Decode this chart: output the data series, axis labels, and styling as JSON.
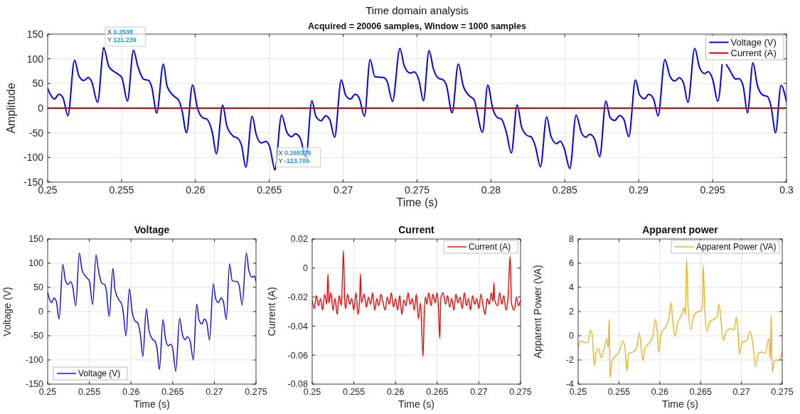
{
  "chart_data": [
    {
      "type": "line",
      "title": "Time domain analysis",
      "subtitle": "Acquired = 20006 samples, Window = 1000 samples",
      "xlabel": "Time (s)",
      "ylabel": "Amplitude",
      "xlim": [
        0.25,
        0.3
      ],
      "xticks": [
        0.25,
        0.255,
        0.26,
        0.265,
        0.27,
        0.275,
        0.28,
        0.285,
        0.29,
        0.295,
        0.3
      ],
      "ylim": [
        -150,
        150
      ],
      "yticks": [
        -150,
        -100,
        -50,
        0,
        50,
        100,
        150
      ],
      "grid": true,
      "legend": "top right",
      "marker": "none",
      "line_style": "solid",
      "series": [
        {
          "name": "Voltage (V)",
          "color": "#0000ff",
          "x": [
            0.25,
            0.25022,
            0.25046,
            0.25076,
            0.25104,
            0.25137,
            0.25182,
            0.25212,
            0.25245,
            0.25275,
            0.25298,
            0.25338,
            0.2538,
            0.25414,
            0.2546,
            0.25502,
            0.2554,
            0.25581,
            0.25609,
            0.25651,
            0.25684,
            0.25705,
            0.25738,
            0.25783,
            0.25808,
            0.25858,
            0.25887,
            0.25907,
            0.2594,
            0.2598,
            0.26015,
            0.26056,
            0.26073,
            0.26114,
            0.26142,
            0.26184,
            0.26213,
            0.26255,
            0.26288,
            0.26313,
            0.26341,
            0.26384,
            0.26412,
            0.26445,
            0.26478,
            0.26503,
            0.265375,
            0.26583,
            0.26619,
            0.26652,
            0.26677,
            0.2671,
            0.26748,
            0.26788,
            0.26815,
            0.26851,
            0.26881,
            0.26909,
            0.26942,
            0.26987,
            0.27017,
            0.2705,
            0.2708,
            0.27108,
            0.27144,
            0.27182,
            0.27215,
            0.27273,
            0.27298,
            0.27334,
            0.27384,
            0.27414,
            0.27455,
            0.2748,
            0.27513,
            0.27543,
            0.27581,
            0.27611,
            0.27648,
            0.27673,
            0.27699,
            0.27737,
            0.27779,
            0.27813,
            0.27859,
            0.27884,
            0.27943,
            0.27978,
            0.28012,
            0.28049,
            0.28069,
            0.28103,
            0.28138,
            0.28177,
            0.28209,
            0.28251,
            0.28271,
            0.28301,
            0.28335,
            0.28377,
            0.28406,
            0.28444,
            0.28469,
            0.28495,
            0.28534,
            0.28576,
            0.28613,
            0.28641,
            0.28668,
            0.28702,
            0.28736,
            0.28778,
            0.28806,
            0.28837,
            0.28871,
            0.28899,
            0.28933,
            0.28978,
            0.29005,
            0.29039,
            0.29068,
            0.29101,
            0.29131,
            0.29177,
            0.29211,
            0.29244,
            0.29274,
            0.29303,
            0.29333,
            0.29379,
            0.29412,
            0.29446,
            0.29471,
            0.295,
            0.29535,
            0.29564,
            0.2958,
            0.29594,
            0.29622,
            0.29655,
            0.29677,
            0.29706,
            0.29736,
            0.29773,
            0.29803,
            0.29842,
            0.29871,
            0.29896,
            0.29926,
            0.29963,
            0.3
          ],
          "values": [
            40,
            26,
            18.5,
            28,
            21,
            -15.5,
            97.5,
            65,
            56,
            62,
            53.5,
            12,
            121.2,
            84.5,
            72,
            62,
            14.5,
            117.5,
            86,
            58.5,
            56,
            42,
            -10,
            89.5,
            45,
            23.5,
            16,
            -1.5,
            -50,
            47,
            -1.5,
            -20.5,
            -21.5,
            -49,
            -92.5,
            6,
            -36.5,
            -56.5,
            -61.5,
            -76.5,
            -120,
            -16.5,
            -54,
            -70.5,
            -67.5,
            -79,
            -123.7,
            -14,
            -49,
            -58,
            -52,
            -61.5,
            -100,
            15,
            -16.5,
            -25.5,
            -15.5,
            -23,
            -59,
            57.5,
            26,
            18.5,
            28,
            21,
            -16.5,
            98.5,
            63.5,
            62,
            53.5,
            13.5,
            121,
            85,
            71,
            73.5,
            56,
            15,
            117,
            79,
            60,
            58,
            46,
            -9.5,
            89.5,
            44.5,
            23.5,
            18,
            -49,
            47,
            -1,
            -20,
            -21.5,
            -47.5,
            -91,
            6.5,
            -40,
            -56.5,
            -58,
            -78,
            -119,
            -17.5,
            -57,
            -72,
            -67,
            -81,
            -122.5,
            -14,
            -50,
            -59,
            -53,
            -63,
            -98.5,
            14.5,
            -19,
            -25,
            -15,
            -22.5,
            -58,
            57.5,
            27.5,
            19,
            28,
            18,
            -16,
            98.5,
            65,
            55,
            61.5,
            51,
            11.5,
            121,
            82,
            70,
            74,
            59,
            14,
            88,
            null,
            88,
            74,
            59,
            60,
            46,
            -9.5,
            92,
            46,
            26,
            23.5,
            3,
            -50,
            46,
            13
          ]
        },
        {
          "name": "Current (A)",
          "color": "#d40000",
          "x": [
            0.25,
            0.3
          ],
          "values": [
            0,
            0
          ]
        }
      ],
      "annotations": [
        {
          "text": "X 0.2538\nY 121.239",
          "x": 0.2538,
          "y": 121.239
        },
        {
          "text": "X 0.265375\nY -123.705",
          "x": 0.265375,
          "y": -123.705
        }
      ]
    },
    {
      "type": "line",
      "title": "Voltage",
      "xlabel": "Time (s)",
      "ylabel": "Voltage (V)",
      "xlim": [
        0.25,
        0.275
      ],
      "xticks": [
        0.25,
        0.255,
        0.26,
        0.265,
        0.27,
        0.275
      ],
      "ylim": [
        -150,
        150
      ],
      "yticks": [
        -150,
        -100,
        -50,
        0,
        50,
        100,
        150
      ],
      "grid": true,
      "legend": "bottom left",
      "marker": "none",
      "line_style": "solid",
      "series": [
        {
          "name": "Voltage (V)",
          "color": "#0000ff",
          "x": [
            0.25,
            0.25022,
            0.25046,
            0.25076,
            0.25104,
            0.25137,
            0.25182,
            0.25212,
            0.25245,
            0.25275,
            0.25298,
            0.25338,
            0.2538,
            0.25414,
            0.2546,
            0.25502,
            0.2554,
            0.25581,
            0.25609,
            0.25651,
            0.25684,
            0.25705,
            0.25738,
            0.25783,
            0.25808,
            0.25858,
            0.25887,
            0.25907,
            0.2594,
            0.2598,
            0.26015,
            0.26056,
            0.26073,
            0.26114,
            0.26142,
            0.26184,
            0.26213,
            0.26255,
            0.26288,
            0.26313,
            0.26341,
            0.26384,
            0.26412,
            0.26445,
            0.26478,
            0.26503,
            0.265375,
            0.26583,
            0.26619,
            0.26652,
            0.26677,
            0.2671,
            0.26748,
            0.26788,
            0.26815,
            0.26851,
            0.26881,
            0.26909,
            0.26942,
            0.26987,
            0.27017,
            0.2705,
            0.2708,
            0.27108,
            0.27144,
            0.27182,
            0.27215,
            0.27273,
            0.27298,
            0.27334,
            0.27384,
            0.27414,
            0.27455,
            0.2748,
            0.275
          ],
          "values": [
            40,
            26,
            18.5,
            28,
            21,
            -15.5,
            97.5,
            65,
            56,
            62,
            53.5,
            12,
            121.2,
            84.5,
            72,
            62,
            14.5,
            117.5,
            86,
            58.5,
            56,
            42,
            -10,
            89.5,
            45,
            23.5,
            16,
            -1.5,
            -50,
            47,
            -1.5,
            -20.5,
            -21.5,
            -49,
            -92.5,
            6,
            -36.5,
            -56.5,
            -61.5,
            -76.5,
            -120,
            -16.5,
            -54,
            -70.5,
            -67.5,
            -79,
            -123.7,
            -14,
            -49,
            -58,
            -52,
            -61.5,
            -100,
            15,
            -16.5,
            -25.5,
            -15.5,
            -23,
            -59,
            57.5,
            26,
            18.5,
            28,
            21,
            -16.5,
            98.5,
            63.5,
            62,
            53.5,
            13.5,
            121,
            85,
            71,
            73.5,
            62
          ]
        }
      ]
    },
    {
      "type": "line",
      "title": "Current",
      "xlabel": "Time (s)",
      "ylabel": "Current (A)",
      "xlim": [
        0.25,
        0.275
      ],
      "xticks": [
        0.25,
        0.255,
        0.26,
        0.265,
        0.27,
        0.275
      ],
      "ylim": [
        -0.08,
        0.02
      ],
      "yticks": [
        -0.08,
        -0.06,
        -0.04,
        -0.02,
        0,
        0.02
      ],
      "grid": true,
      "legend": "top right",
      "marker": "none",
      "line_style": "solid",
      "series": [
        {
          "name": "Current (A)",
          "color": "#ff0000",
          "x": [
            0.25,
            0.25025,
            0.2505,
            0.25075,
            0.251,
            0.25125,
            0.2515,
            0.25175,
            0.2519,
            0.252,
            0.25225,
            0.2525,
            0.25275,
            0.253,
            0.25325,
            0.2535,
            0.25375,
            0.2539,
            0.254,
            0.25425,
            0.2545,
            0.25475,
            0.255,
            0.25525,
            0.2555,
            0.2557,
            0.2558,
            0.2559,
            0.25625,
            0.2565,
            0.25675,
            0.257,
            0.25725,
            0.2575,
            0.25775,
            0.258,
            0.25825,
            0.2585,
            0.25875,
            0.259,
            0.25925,
            0.2595,
            0.25975,
            0.26,
            0.26025,
            0.2605,
            0.26075,
            0.261,
            0.26125,
            0.2615,
            0.26175,
            0.262,
            0.26225,
            0.2625,
            0.26275,
            0.263,
            0.2633,
            0.26345,
            0.2636,
            0.26375,
            0.264,
            0.26425,
            0.2645,
            0.26475,
            0.265,
            0.26515,
            0.2653,
            0.26545,
            0.2657,
            0.266,
            0.26625,
            0.2665,
            0.26675,
            0.267,
            0.26725,
            0.2675,
            0.26775,
            0.268,
            0.26825,
            0.2685,
            0.26875,
            0.269,
            0.26925,
            0.2695,
            0.26975,
            0.27,
            0.27025,
            0.2705,
            0.27075,
            0.271,
            0.27125,
            0.2715,
            0.2717,
            0.2718,
            0.2719,
            0.27225,
            0.2725,
            0.27275,
            0.273,
            0.27325,
            0.2735,
            0.27375,
            0.2739,
            0.27425,
            0.2745,
            0.27475,
            0.275
          ],
          "values": [
            -0.022,
            -0.028,
            -0.019,
            -0.026,
            -0.021,
            -0.029,
            -0.018,
            -0.025,
            -0.004,
            -0.024,
            -0.017,
            -0.029,
            -0.021,
            -0.032,
            -0.019,
            -0.026,
            0.012,
            -0.022,
            -0.028,
            -0.018,
            -0.025,
            -0.021,
            -0.029,
            -0.017,
            -0.032,
            -0.02,
            -0.004,
            -0.024,
            -0.018,
            -0.027,
            -0.02,
            -0.025,
            -0.017,
            -0.029,
            -0.021,
            -0.026,
            -0.018,
            -0.024,
            -0.029,
            -0.02,
            -0.025,
            -0.017,
            -0.027,
            -0.021,
            -0.029,
            -0.019,
            -0.032,
            -0.022,
            -0.026,
            -0.017,
            -0.025,
            -0.021,
            -0.029,
            -0.018,
            -0.035,
            -0.024,
            -0.061,
            -0.03,
            -0.02,
            -0.025,
            -0.017,
            -0.026,
            -0.018,
            -0.024,
            -0.017,
            -0.027,
            -0.0485,
            -0.02,
            -0.017,
            -0.025,
            -0.019,
            -0.027,
            -0.021,
            -0.029,
            -0.018,
            -0.024,
            -0.02,
            -0.028,
            -0.017,
            -0.026,
            -0.021,
            -0.029,
            -0.019,
            -0.025,
            -0.021,
            -0.028,
            -0.018,
            -0.026,
            -0.032,
            -0.021,
            -0.025,
            -0.017,
            -0.023,
            -0.0103,
            -0.022,
            -0.026,
            -0.017,
            -0.025,
            -0.019,
            -0.029,
            -0.02,
            0.0082,
            -0.024,
            -0.029,
            -0.02,
            -0.026,
            -0.022
          ]
        }
      ]
    },
    {
      "type": "line",
      "title": "Apparent power",
      "xlabel": "Time (s)",
      "ylabel": "Apparent Power (VA)",
      "xlim": [
        0.25,
        0.275
      ],
      "xticks": [
        0.25,
        0.255,
        0.26,
        0.265,
        0.27,
        0.275
      ],
      "ylim": [
        -4,
        8
      ],
      "yticks": [
        -4,
        -2,
        0,
        2,
        4,
        6,
        8
      ],
      "grid": true,
      "legend": "top right",
      "marker": "none",
      "line_style": "solid",
      "series": [
        {
          "name": "Apparent Power (VA)",
          "color": "#edb120",
          "x": [
            0.25,
            0.25037,
            0.25094,
            0.25122,
            0.2515,
            0.25173,
            0.25199,
            0.25221,
            0.2525,
            0.25284,
            0.25312,
            0.25349,
            0.25369,
            0.2538,
            0.25392,
            0.25414,
            0.25448,
            0.25491,
            0.2552,
            0.25548,
            0.25576,
            0.25596,
            0.25619,
            0.25675,
            0.25718,
            0.25749,
            0.25775,
            0.25795,
            0.25817,
            0.25874,
            0.25917,
            0.25945,
            0.25968,
            0.25987,
            0.26016,
            0.26073,
            0.26115,
            0.26138,
            0.26158,
            0.26186,
            0.26215,
            0.26266,
            0.263,
            0.26314,
            0.26328,
            0.26348,
            0.26379,
            0.26413,
            0.26456,
            0.26498,
            0.26521,
            0.26532,
            0.26549,
            0.26578,
            0.26612,
            0.26669,
            0.26703,
            0.26725,
            0.26754,
            0.26776,
            0.26816,
            0.26867,
            0.26909,
            0.26938,
            0.26958,
            0.26975,
            0.27009,
            0.27066,
            0.27108,
            0.27137,
            0.27174,
            0.27208,
            0.2725,
            0.27293,
            0.27335,
            0.27355,
            0.27364,
            0.27378,
            0.27406,
            0.27449,
            0.275
          ],
          "values": [
            -0.87,
            -0.43,
            -0.58,
            -0.48,
            0.46,
            0,
            -2.5,
            -1.35,
            -1.06,
            -1.84,
            -1.26,
            -0.25,
            -0.97,
            1.35,
            -3.48,
            -2.13,
            -1.74,
            -1.45,
            -0.97,
            -0.43,
            -1.16,
            -2.9,
            -1.45,
            -1.35,
            -0.97,
            0.23,
            -1.16,
            -2.07,
            -1.06,
            -0.58,
            0,
            1.35,
            0.39,
            -1.35,
            0.19,
            0.73,
            1.55,
            2.75,
            1.35,
            -0.04,
            0.97,
            1.7,
            2.32,
            1.74,
            6.38,
            2.32,
            0.48,
            1.55,
            1.97,
            2.03,
            2.42,
            5.84,
            2.51,
            0.29,
            1.16,
            1.39,
            1.59,
            2.61,
            0.97,
            -0.39,
            0.39,
            0.58,
            0.48,
            1.55,
            0.39,
            -1.51,
            -0.52,
            -0.39,
            0.39,
            -0.58,
            -2.51,
            -1.45,
            -1.35,
            -1.45,
            -0.23,
            -1.93,
            1.7,
            -3,
            -2.03,
            -2.03,
            -1.35
          ]
        }
      ]
    }
  ]
}
